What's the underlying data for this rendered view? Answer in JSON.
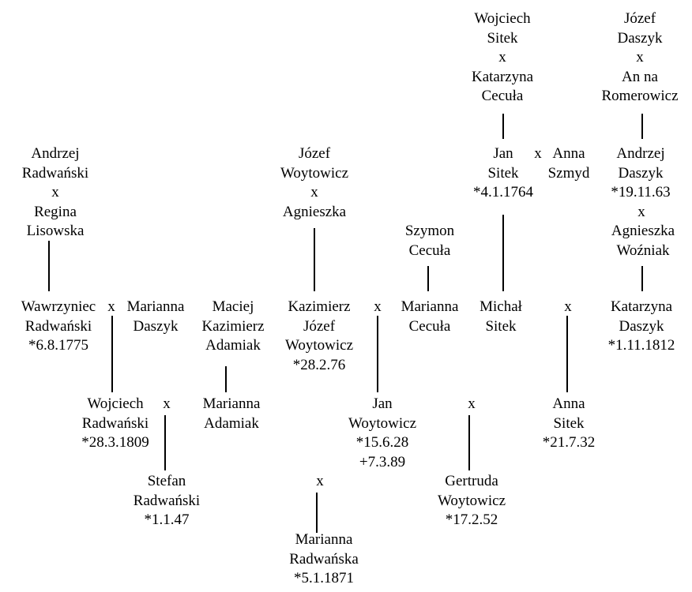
{
  "tree": {
    "wojciech_katarzyna": "Wojciech\nSitek\nx\nKatarzyna\nCecuła",
    "jozef_anna": "Józef\nDaszyk\nx\nAn na\nRomerowicz",
    "jan_sitek": "Jan\nSitek\n*4.1.1764",
    "x_jan_anna": "x",
    "anna_szmyd": "Anna\nSzmyd",
    "andrzej_daszyk": "Andrzej\nDaszyk\n*19.11.63",
    "x_andrzej_agnieszka": "x",
    "agnieszka_wozniak": "Agnieszka\nWoźniak",
    "andrzej_regina": "Andrzej\nRadwański\nx\nRegina\nLisowska",
    "jozef_agnieszka": "Józef\nWoytowicz\nx\nAgnieszka",
    "szymon_cecula": "Szymon\nCecuła",
    "wawrzyniec": "Wawrzyniec\nRadwański\n*6.8.1775",
    "x_wawrzyniec_marianna": "x",
    "marianna_daszyk": "Marianna\nDaszyk",
    "maciej_adamiak": "Maciej\nKazimierz\nAdamiak",
    "kazimierz": "Kazimierz\nJózef\nWoytowicz\n*28.2.76",
    "x_kazimierz_marianna": "x",
    "marianna_cecula": "Marianna\nCecuła",
    "michal_sitek": "Michał\nSitek",
    "x_michal_katarzyna": "x",
    "katarzyna_daszyk": "Katarzyna\nDaszyk\n*1.11.1812",
    "wojciech_radwanski": "Wojciech\nRadwański\n*28.3.1809",
    "x_wojciech_marianna": "x",
    "marianna_adamiak": "Marianna\nAdamiak",
    "jan_woytowicz": "Jan\nWoytowicz\n*15.6.28\n+7.3.89",
    "x_jan_anna_sitek": "x",
    "anna_sitek": "Anna\nSitek\n*21.7.32",
    "stefan": "Stefan\nRadwański\n*1.1.47",
    "x_stefan_gertruda": "x",
    "gertruda": "Gertruda\nWoytowicz\n*17.2.52",
    "marianna_radwanska": "Marianna\nRadwańska\n*5.1.1871"
  }
}
